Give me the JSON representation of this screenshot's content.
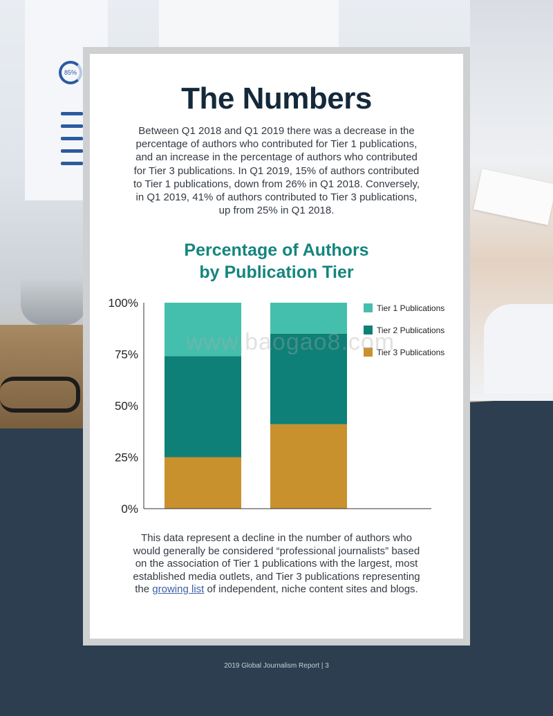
{
  "page": {
    "title": "The Numbers",
    "intro": "Between Q1 2018 and Q1 2019 there was a decrease in the percentage of authors who contributed for Tier 1 publications, and an increase in the percentage of authors who contributed for Tier 3 publications. In Q1 2019, 15% of authors contributed to Tier 1 publications, down from 26% in Q1 2018. Conversely, in Q1 2019, 41% of authors contributed to Tier 3 publications, up from 25% in Q1 2018.",
    "outro_before": "This data represent a decline in the number of authors who would generally be considered “professional journalists” based on the association of Tier 1 publications with the largest, most established media outlets, and Tier 3 publications representing the ",
    "outro_link": "growing list",
    "outro_after": " of independent, niche content sites and blogs.",
    "watermark": "www.baogao8.com",
    "footer": "2019 Global Journalism Report | 3",
    "background_badge": "85%"
  },
  "chart_data": {
    "type": "bar",
    "stacked": true,
    "title_line1": "Percentage of Authors",
    "title_line2": "by Publication Tier",
    "categories": [
      "",
      ""
    ],
    "series": [
      {
        "name": "Tier 3 Publications",
        "values": [
          25,
          41
        ],
        "color": "#c8912d"
      },
      {
        "name": "Tier 2 Publications",
        "values": [
          49,
          44
        ],
        "color": "#0e8077"
      },
      {
        "name": "Tier 1 Publications",
        "values": [
          26,
          15
        ],
        "color": "#45bfad"
      }
    ],
    "legend_order": [
      "Tier 1 Publications",
      "Tier 2 Publications",
      "Tier 3 Publications"
    ],
    "yticks": [
      "0%",
      "25%",
      "50%",
      "75%",
      "100%"
    ],
    "ytick_values": [
      0,
      25,
      50,
      75,
      100
    ],
    "ylim": [
      0,
      100
    ],
    "grid": false,
    "legend_position": "right"
  },
  "colors": {
    "title": "#14293a",
    "chart_title": "#15857e",
    "background_dark": "#2c3e4f"
  }
}
